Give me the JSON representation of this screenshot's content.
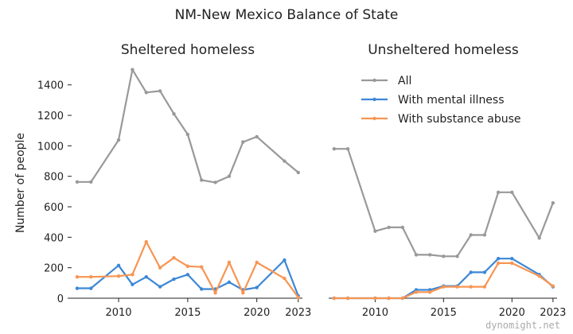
{
  "title": "NM-New Mexico Balance of State",
  "watermark": "dynomight.net",
  "colors": {
    "all": "#999999",
    "mental": "#3c87d6",
    "substance": "#f79552",
    "axis": "#222222",
    "text": "#222222"
  },
  "chart_data": [
    {
      "type": "line",
      "title": "Sheltered homeless",
      "xlabel": "",
      "ylabel": "Number of people",
      "xlim": [
        2006.6,
        2023.3
      ],
      "ylim": [
        0,
        1550
      ],
      "xticks": [
        2010,
        2015,
        2020,
        2023
      ],
      "yticks": [
        0,
        200,
        400,
        600,
        800,
        1000,
        1200,
        1400
      ],
      "series": [
        {
          "name": "All",
          "color_key": "all",
          "x": [
            2007,
            2008,
            2010,
            2011,
            2012,
            2013,
            2014,
            2015,
            2016,
            2017,
            2018,
            2019,
            2020,
            2022,
            2023
          ],
          "y": [
            763,
            763,
            1038,
            1500,
            1350,
            1360,
            1210,
            1075,
            775,
            760,
            800,
            1025,
            1060,
            900,
            825
          ]
        },
        {
          "name": "With mental illness",
          "color_key": "mental",
          "x": [
            2007,
            2008,
            2010,
            2011,
            2012,
            2013,
            2014,
            2015,
            2016,
            2017,
            2018,
            2019,
            2020,
            2022,
            2023
          ],
          "y": [
            65,
            65,
            215,
            90,
            140,
            75,
            125,
            155,
            60,
            60,
            105,
            55,
            70,
            250,
            15
          ]
        },
        {
          "name": "With substance abuse",
          "color_key": "substance",
          "x": [
            2007,
            2008,
            2010,
            2011,
            2012,
            2013,
            2014,
            2015,
            2016,
            2017,
            2018,
            2019,
            2020,
            2022,
            2023
          ],
          "y": [
            140,
            140,
            145,
            155,
            370,
            200,
            265,
            210,
            205,
            35,
            235,
            35,
            235,
            130,
            5
          ]
        }
      ]
    },
    {
      "type": "line",
      "title": "Unsheltered homeless",
      "xlabel": "",
      "ylabel": "",
      "xlim": [
        2006.6,
        2023.3
      ],
      "ylim": [
        0,
        1550
      ],
      "xticks": [
        2010,
        2015,
        2020,
        2023
      ],
      "yticks": [],
      "legend": [
        "All",
        "With mental illness",
        "With substance abuse"
      ],
      "legend_position": "top-right",
      "series": [
        {
          "name": "All",
          "color_key": "all",
          "x": [
            2007,
            2008,
            2010,
            2011,
            2012,
            2013,
            2014,
            2015,
            2016,
            2017,
            2018,
            2019,
            2020,
            2022,
            2023
          ],
          "y": [
            980,
            980,
            440,
            465,
            465,
            285,
            285,
            275,
            275,
            415,
            415,
            695,
            695,
            395,
            625
          ]
        },
        {
          "name": "With mental illness",
          "color_key": "mental",
          "x": [
            2007,
            2008,
            2010,
            2011,
            2012,
            2013,
            2014,
            2015,
            2016,
            2017,
            2018,
            2019,
            2020,
            2022,
            2023
          ],
          "y": [
            0,
            0,
            0,
            0,
            0,
            55,
            55,
            80,
            80,
            170,
            170,
            260,
            260,
            155,
            75
          ]
        },
        {
          "name": "With substance abuse",
          "color_key": "substance",
          "x": [
            2007,
            2008,
            2010,
            2011,
            2012,
            2013,
            2014,
            2015,
            2016,
            2017,
            2018,
            2019,
            2020,
            2022,
            2023
          ],
          "y": [
            0,
            0,
            0,
            0,
            0,
            40,
            40,
            75,
            75,
            75,
            75,
            230,
            230,
            145,
            80
          ]
        }
      ]
    }
  ]
}
